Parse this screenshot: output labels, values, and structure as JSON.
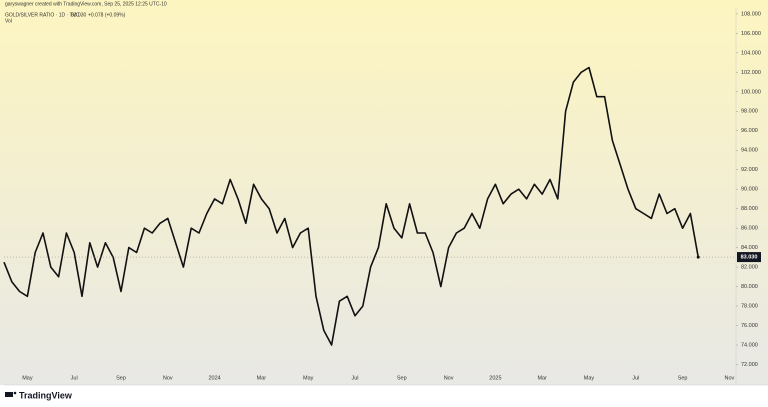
{
  "attribution": "garyswagner created with TradingView.com, Sep 25, 2025 12:25 UTC-10",
  "legend": {
    "symbol": "GOLD/SILVER RATIO · 1D · TVC",
    "last": "83.030",
    "change": "+0.078 (+0.09%)",
    "volume": "Vol"
  },
  "logo": "TradingView",
  "chart_data": {
    "type": "line",
    "color": "#111111",
    "categories": [
      null,
      null,
      null,
      "May",
      null,
      null,
      null,
      null,
      null,
      "Jul",
      null,
      null,
      null,
      null,
      null,
      "Sep",
      null,
      null,
      null,
      null,
      null,
      "Nov",
      null,
      null,
      null,
      null,
      null,
      "2024",
      null,
      null,
      null,
      null,
      null,
      "Mar",
      null,
      null,
      null,
      null,
      null,
      "May",
      null,
      null,
      null,
      null,
      null,
      "Jul",
      null,
      null,
      null,
      null,
      null,
      "Sep",
      null,
      null,
      null,
      null,
      null,
      "Nov",
      null,
      null,
      null,
      null,
      null,
      "2025",
      null,
      null,
      null,
      null,
      null,
      "Mar",
      null,
      null,
      null,
      null,
      null,
      "May",
      null,
      null,
      null,
      null,
      null,
      "Jul",
      null,
      null,
      null,
      null,
      null,
      "Sep",
      null,
      null,
      null,
      null,
      null,
      "Nov"
    ],
    "values": [
      82.5,
      80.5,
      79.5,
      79,
      83.5,
      85.5,
      82,
      81,
      85.5,
      83.5,
      79,
      84.5,
      82,
      84.5,
      83,
      79.5,
      84,
      83.5,
      86,
      85.5,
      86.5,
      87,
      84.5,
      82,
      86,
      85.5,
      87.5,
      89,
      88.5,
      91,
      89,
      86.5,
      90.5,
      89,
      88,
      85.5,
      87,
      84,
      85.5,
      86,
      79,
      75.5,
      74,
      78.5,
      79,
      77,
      78,
      82,
      84,
      88.5,
      86,
      85,
      88.5,
      85.5,
      85.5,
      83.5,
      80,
      84,
      85.5,
      86,
      87.5,
      86,
      89,
      90.5,
      88.5,
      89.5,
      90,
      89,
      90.5,
      89.5,
      91,
      89,
      98,
      101,
      102,
      102.5,
      99.5,
      99.5,
      95,
      92.5,
      90,
      88,
      87.5,
      87,
      89.5,
      87.5,
      88,
      86,
      87.5,
      83.03,
      null,
      null,
      null,
      null
    ],
    "value_labels": [
      null,
      null,
      null,
      null,
      null,
      null,
      null,
      null,
      null,
      null,
      null,
      null,
      null,
      null,
      null,
      null,
      null,
      null,
      null,
      null,
      null,
      null,
      null,
      null,
      null,
      null,
      null,
      null,
      null,
      null,
      null,
      null,
      null,
      null,
      null,
      null,
      null,
      null,
      null,
      null,
      null,
      null,
      null,
      null,
      null,
      null,
      null,
      null,
      null,
      null,
      null,
      null,
      null,
      null,
      null,
      null,
      null,
      null,
      null,
      null,
      null,
      null,
      null,
      null,
      null,
      null,
      null,
      null,
      null,
      null,
      null,
      null,
      null,
      null,
      null,
      null,
      null,
      null,
      null,
      null,
      null,
      null,
      null,
      null,
      null,
      null,
      null,
      null,
      null,
      "83.030",
      null,
      null,
      null,
      null
    ],
    "ylim": [
      70.1,
      108.4
    ],
    "yticks": [
      {
        "value": 72,
        "label": "72.000"
      },
      {
        "value": 74,
        "label": "74.000"
      },
      {
        "value": 76,
        "label": "76.000"
      },
      {
        "value": 78,
        "label": "78.000"
      },
      {
        "value": 80,
        "label": "80.000"
      },
      {
        "value": 82,
        "label": "82.000"
      },
      {
        "value": 84,
        "label": "84.000"
      },
      {
        "value": 86,
        "label": "86.000"
      },
      {
        "value": 88,
        "label": "88.000"
      },
      {
        "value": 90,
        "label": "90.000"
      },
      {
        "value": 92,
        "label": "92.000"
      },
      {
        "value": 94,
        "label": "94.000"
      },
      {
        "value": 96,
        "label": "96.000"
      },
      {
        "value": 98,
        "label": "98.000"
      },
      {
        "value": 100,
        "label": "100.000"
      },
      {
        "value": 102,
        "label": "102.000"
      },
      {
        "value": 104,
        "label": "104.000"
      },
      {
        "value": 106,
        "label": "106.000"
      },
      {
        "value": 108,
        "label": "108.000"
      }
    ],
    "grid": false
  }
}
